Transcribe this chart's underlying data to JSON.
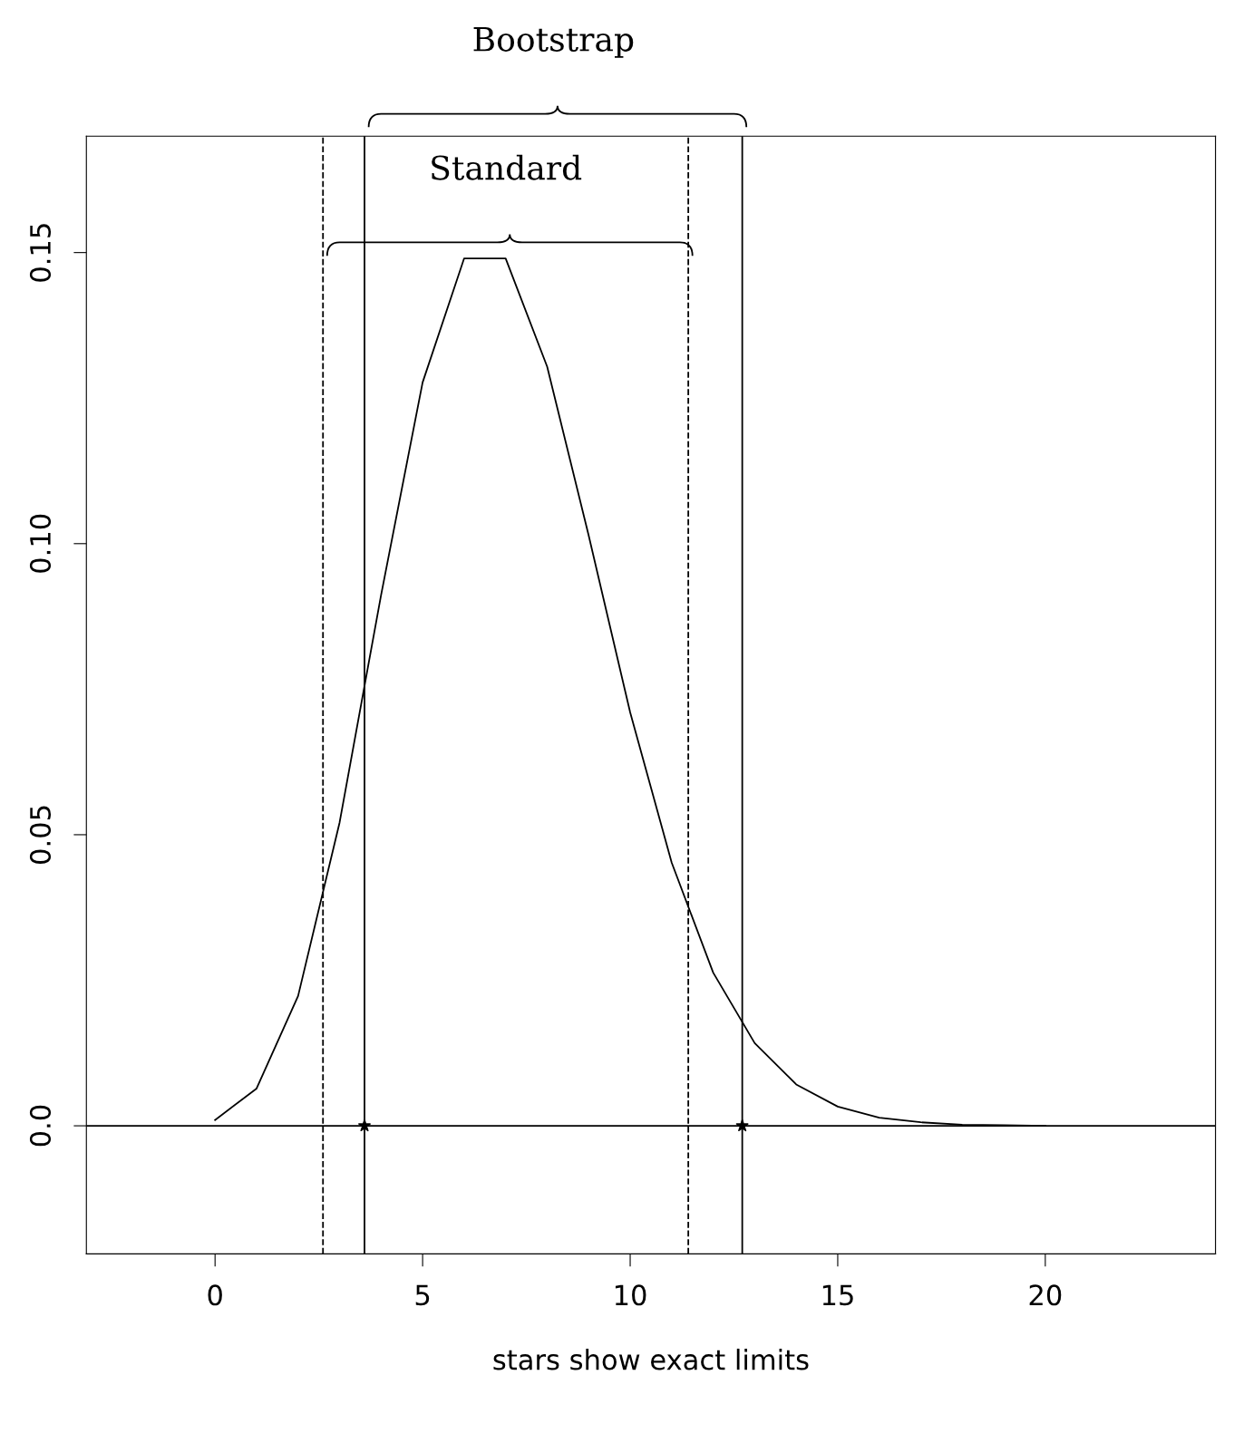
{
  "chart_data": {
    "type": "line",
    "xlabel": "stars show exact limits",
    "annotations": [
      "Bootstrap",
      "Standard"
    ],
    "series": [
      {
        "color": "#000000",
        "marker": "none",
        "line_style": "solid",
        "x": [
          0,
          1,
          2,
          3,
          4,
          5,
          6,
          7,
          8,
          9,
          10,
          11,
          12,
          13,
          14,
          15,
          16,
          17,
          18,
          19,
          20
        ],
        "values": [
          0.001,
          0.0064,
          0.0223,
          0.0521,
          0.0912,
          0.1277,
          0.149,
          0.149,
          0.1304,
          0.1014,
          0.071,
          0.0452,
          0.0263,
          0.0142,
          0.0071,
          0.0033,
          0.0014,
          0.0006,
          0.0002,
          0.0001,
          0.0
        ]
      },
      {
        "type": "scatter",
        "color": "#000000",
        "marker": "star",
        "x": [
          3.6,
          12.7
        ],
        "values": [
          0,
          0
        ]
      }
    ],
    "ref_lines": [
      {
        "axis": "y",
        "value": 0,
        "color": "#000000",
        "line_style": "solid"
      },
      {
        "axis": "x",
        "value": 3.6,
        "color": "#000000",
        "line_style": "solid"
      },
      {
        "axis": "x",
        "value": 12.7,
        "color": "#000000",
        "line_style": "solid"
      },
      {
        "axis": "x",
        "value": 2.6,
        "color": "#000000",
        "line_style": "dashed"
      },
      {
        "axis": "x",
        "value": 11.4,
        "color": "#000000",
        "line_style": "dashed"
      }
    ],
    "xlim": [
      -3.1,
      24.1
    ],
    "ylim": [
      -0.022,
      0.17
    ],
    "xticks": [
      0,
      5,
      10,
      15,
      20
    ],
    "yticks": [
      {
        "value": 0,
        "label": "0.0"
      },
      {
        "value": 0.05,
        "label": "0.05"
      },
      {
        "value": 0.1,
        "label": "0.10"
      },
      {
        "value": 0.15,
        "label": "0.15"
      }
    ],
    "grid": false
  }
}
